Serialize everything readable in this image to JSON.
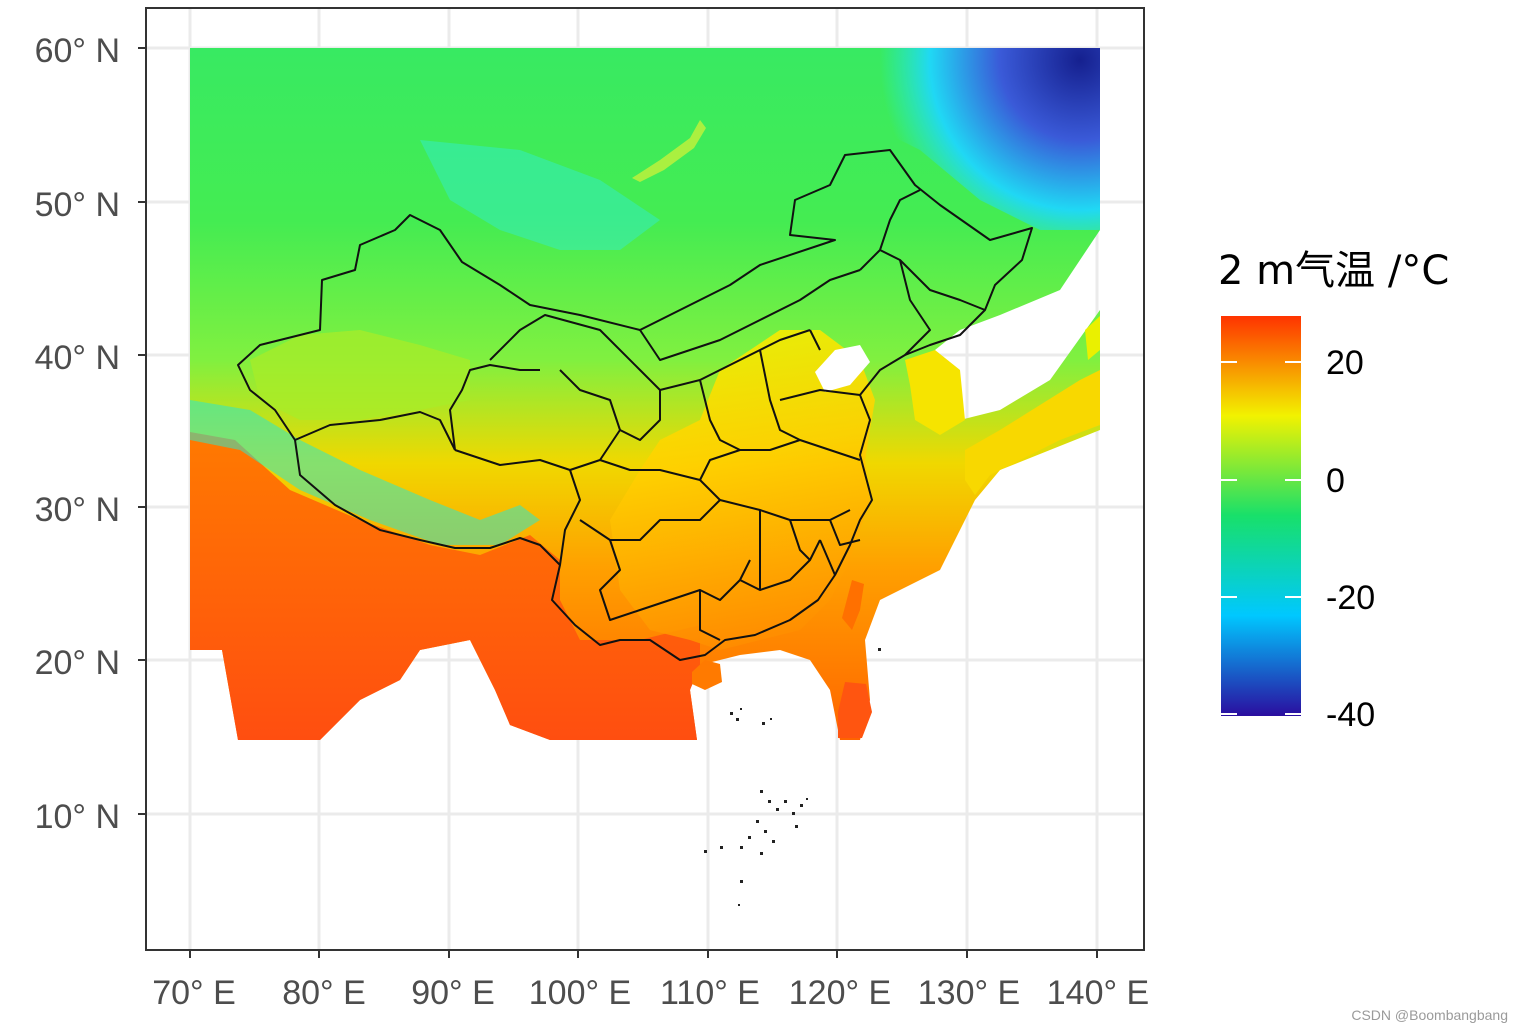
{
  "map": {
    "lon_ticks": [
      "70° E",
      "80° E",
      "90° E",
      "100° E",
      "110° E",
      "120° E",
      "130° E",
      "140° E"
    ],
    "lat_ticks": [
      "60° N",
      "50° N",
      "40° N",
      "30° N",
      "20° N",
      "10° N"
    ],
    "legend": {
      "title": "2 m气温 /°C",
      "ticks": [
        "20",
        "0",
        "-20",
        "-40"
      ],
      "colors": [
        "#2a0fa0",
        "#00c8ff",
        "#18e06a",
        "#f2f200",
        "#ff3300"
      ]
    },
    "colors": {
      "warm_south": "#ff6a00",
      "warm_deep": "#ff4a10",
      "north_green": "#44ee55",
      "cold_cyan": "#22e8f0",
      "coldest": "#1a2aa0",
      "yellow_east": "#ffd400",
      "border": "#111111",
      "grid": "#ebebeb"
    }
  },
  "watermark": "CSDN @Boombangbang"
}
